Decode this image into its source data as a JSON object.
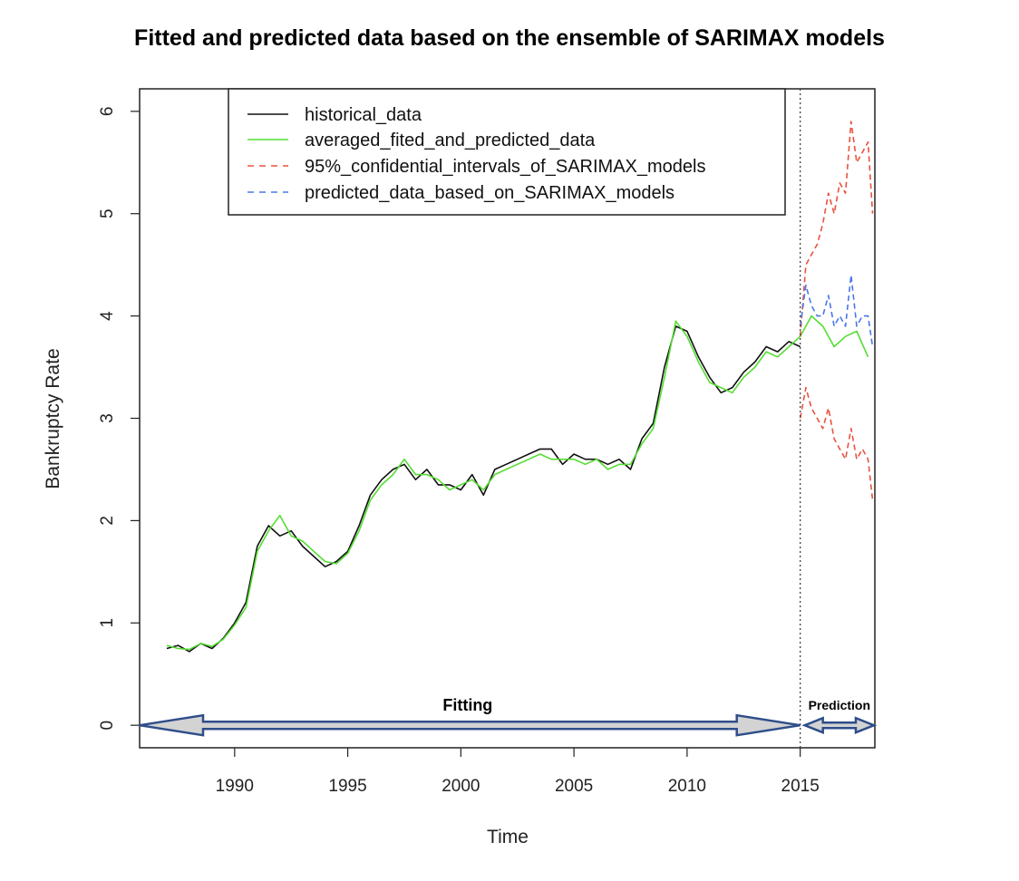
{
  "chart_data": {
    "type": "line",
    "title": "Fitted and predicted data based on the ensemble of SARIMAX models",
    "xlabel": "Time",
    "ylabel": "Bankruptcy Rate",
    "xlim": [
      1985.8,
      2018.3
    ],
    "ylim": [
      -0.22,
      6.22
    ],
    "x_ticks": [
      1990,
      1995,
      2000,
      2005,
      2010,
      2015
    ],
    "y_ticks": [
      0,
      1,
      2,
      3,
      4,
      5,
      6
    ],
    "grid": false,
    "legend_position": "top-left",
    "vline_x": 2015,
    "colors": {
      "historical": "#111111",
      "averaged": "#55dd33",
      "ci": "#e8533f",
      "predicted": "#4a78e8",
      "arrow_fill": "#d3d3d3",
      "arrow_stroke": "#2f4d8a"
    },
    "annotations": {
      "fitting": {
        "label": "Fitting",
        "x_range": [
          1986,
          2015
        ],
        "y": 0
      },
      "prediction": {
        "label": "Prediction",
        "x_range": [
          2015,
          2018.3
        ],
        "y": 0
      }
    },
    "series": [
      {
        "name": "historical_data",
        "style": "solid",
        "x": [
          1987,
          1987.5,
          1988,
          1988.5,
          1989,
          1989.5,
          1990,
          1990.5,
          1991,
          1991.5,
          1992,
          1992.5,
          1993,
          1993.5,
          1994,
          1994.5,
          1995,
          1995.5,
          1996,
          1996.5,
          1997,
          1997.5,
          1998,
          1998.5,
          1999,
          1999.5,
          2000,
          2000.5,
          2001,
          2001.5,
          2002,
          2002.5,
          2003,
          2003.5,
          2004,
          2004.5,
          2005,
          2005.5,
          2006,
          2006.5,
          2007,
          2007.5,
          2008,
          2008.5,
          2009,
          2009.5,
          2010,
          2010.5,
          2011,
          2011.5,
          2012,
          2012.5,
          2013,
          2013.5,
          2014,
          2014.5,
          2015
        ],
        "values": [
          0.75,
          0.78,
          0.72,
          0.8,
          0.75,
          0.85,
          1.0,
          1.2,
          1.75,
          1.95,
          1.85,
          1.9,
          1.75,
          1.65,
          1.55,
          1.6,
          1.7,
          1.95,
          2.25,
          2.4,
          2.5,
          2.55,
          2.4,
          2.5,
          2.35,
          2.35,
          2.3,
          2.45,
          2.25,
          2.5,
          2.55,
          2.6,
          2.65,
          2.7,
          2.7,
          2.55,
          2.65,
          2.6,
          2.6,
          2.55,
          2.6,
          2.5,
          2.8,
          2.95,
          3.5,
          3.9,
          3.85,
          3.6,
          3.4,
          3.25,
          3.3,
          3.45,
          3.55,
          3.7,
          3.65,
          3.75,
          3.7
        ]
      },
      {
        "name": "averaged_fited_and_predicted_data",
        "style": "solid",
        "x": [
          1987,
          1987.5,
          1988,
          1988.5,
          1989,
          1989.5,
          1990,
          1990.5,
          1991,
          1991.5,
          1992,
          1992.5,
          1993,
          1993.5,
          1994,
          1994.5,
          1995,
          1995.5,
          1996,
          1996.5,
          1997,
          1997.5,
          1998,
          1998.5,
          1999,
          1999.5,
          2000,
          2000.5,
          2001,
          2001.5,
          2002,
          2002.5,
          2003,
          2003.5,
          2004,
          2004.5,
          2005,
          2005.5,
          2006,
          2006.5,
          2007,
          2007.5,
          2008,
          2008.5,
          2009,
          2009.5,
          2010,
          2010.5,
          2011,
          2011.5,
          2012,
          2012.5,
          2013,
          2013.5,
          2014,
          2014.5,
          2015,
          2015.5,
          2016,
          2016.5,
          2017,
          2017.5,
          2018
        ],
        "values": [
          0.78,
          0.75,
          0.74,
          0.8,
          0.77,
          0.84,
          0.98,
          1.15,
          1.7,
          1.9,
          2.05,
          1.85,
          1.8,
          1.7,
          1.6,
          1.58,
          1.68,
          1.9,
          2.2,
          2.35,
          2.45,
          2.6,
          2.45,
          2.45,
          2.4,
          2.3,
          2.35,
          2.4,
          2.3,
          2.45,
          2.5,
          2.55,
          2.6,
          2.65,
          2.6,
          2.6,
          2.6,
          2.55,
          2.6,
          2.5,
          2.55,
          2.55,
          2.75,
          2.9,
          3.4,
          3.95,
          3.8,
          3.55,
          3.35,
          3.3,
          3.25,
          3.4,
          3.5,
          3.65,
          3.6,
          3.7,
          3.8,
          4.0,
          3.9,
          3.7,
          3.8,
          3.85,
          3.6
        ]
      },
      {
        "name": "95%_confidential_intervals_of_SARIMAX_models",
        "style": "dashed",
        "x": [
          2015,
          2015.25,
          2015.5,
          2015.75,
          2016,
          2016.25,
          2016.5,
          2016.75,
          2017,
          2017.25,
          2017.5,
          2017.75,
          2018,
          2018.2
        ],
        "values": [
          3.8,
          4.5,
          4.6,
          4.7,
          4.9,
          5.2,
          5.0,
          5.3,
          5.2,
          5.9,
          5.5,
          5.6,
          5.7,
          5.0
        ]
      },
      {
        "name": "",
        "style": "dashed",
        "x": [
          2015,
          2015.25,
          2015.5,
          2015.75,
          2016,
          2016.25,
          2016.5,
          2016.75,
          2017,
          2017.25,
          2017.5,
          2017.75,
          2018,
          2018.2
        ],
        "values": [
          3.0,
          3.3,
          3.1,
          3.0,
          2.9,
          3.1,
          2.8,
          2.7,
          2.6,
          2.9,
          2.6,
          2.7,
          2.6,
          2.2
        ]
      },
      {
        "name": "predicted_data_based_on_SARIMAX_models",
        "style": "dashed",
        "x": [
          2015,
          2015.25,
          2015.5,
          2015.75,
          2016,
          2016.25,
          2016.5,
          2016.75,
          2017,
          2017.25,
          2017.5,
          2017.75,
          2018,
          2018.2
        ],
        "values": [
          3.9,
          4.3,
          4.1,
          4.0,
          4.0,
          4.2,
          3.9,
          4.0,
          3.9,
          4.4,
          3.9,
          4.0,
          4.0,
          3.7
        ]
      }
    ]
  }
}
